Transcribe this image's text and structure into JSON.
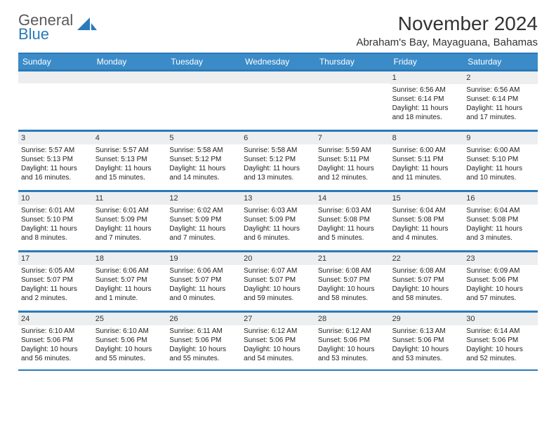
{
  "brand": {
    "word1": "General",
    "word2": "Blue"
  },
  "title": "November 2024",
  "location": "Abraham's Bay, Mayaguana, Bahamas",
  "colors": {
    "header_bg": "#3b8bc8",
    "rule": "#2a7ab9",
    "num_bg": "#eceef0",
    "text": "#222222",
    "logo_gray": "#5a5a5a"
  },
  "day_names": [
    "Sunday",
    "Monday",
    "Tuesday",
    "Wednesday",
    "Thursday",
    "Friday",
    "Saturday"
  ],
  "weeks": [
    [
      {
        "n": "",
        "sunrise": "",
        "sunset": "",
        "daylight": ""
      },
      {
        "n": "",
        "sunrise": "",
        "sunset": "",
        "daylight": ""
      },
      {
        "n": "",
        "sunrise": "",
        "sunset": "",
        "daylight": ""
      },
      {
        "n": "",
        "sunrise": "",
        "sunset": "",
        "daylight": ""
      },
      {
        "n": "",
        "sunrise": "",
        "sunset": "",
        "daylight": ""
      },
      {
        "n": "1",
        "sunrise": "Sunrise: 6:56 AM",
        "sunset": "Sunset: 6:14 PM",
        "daylight": "Daylight: 11 hours and 18 minutes."
      },
      {
        "n": "2",
        "sunrise": "Sunrise: 6:56 AM",
        "sunset": "Sunset: 6:14 PM",
        "daylight": "Daylight: 11 hours and 17 minutes."
      }
    ],
    [
      {
        "n": "3",
        "sunrise": "Sunrise: 5:57 AM",
        "sunset": "Sunset: 5:13 PM",
        "daylight": "Daylight: 11 hours and 16 minutes."
      },
      {
        "n": "4",
        "sunrise": "Sunrise: 5:57 AM",
        "sunset": "Sunset: 5:13 PM",
        "daylight": "Daylight: 11 hours and 15 minutes."
      },
      {
        "n": "5",
        "sunrise": "Sunrise: 5:58 AM",
        "sunset": "Sunset: 5:12 PM",
        "daylight": "Daylight: 11 hours and 14 minutes."
      },
      {
        "n": "6",
        "sunrise": "Sunrise: 5:58 AM",
        "sunset": "Sunset: 5:12 PM",
        "daylight": "Daylight: 11 hours and 13 minutes."
      },
      {
        "n": "7",
        "sunrise": "Sunrise: 5:59 AM",
        "sunset": "Sunset: 5:11 PM",
        "daylight": "Daylight: 11 hours and 12 minutes."
      },
      {
        "n": "8",
        "sunrise": "Sunrise: 6:00 AM",
        "sunset": "Sunset: 5:11 PM",
        "daylight": "Daylight: 11 hours and 11 minutes."
      },
      {
        "n": "9",
        "sunrise": "Sunrise: 6:00 AM",
        "sunset": "Sunset: 5:10 PM",
        "daylight": "Daylight: 11 hours and 10 minutes."
      }
    ],
    [
      {
        "n": "10",
        "sunrise": "Sunrise: 6:01 AM",
        "sunset": "Sunset: 5:10 PM",
        "daylight": "Daylight: 11 hours and 8 minutes."
      },
      {
        "n": "11",
        "sunrise": "Sunrise: 6:01 AM",
        "sunset": "Sunset: 5:09 PM",
        "daylight": "Daylight: 11 hours and 7 minutes."
      },
      {
        "n": "12",
        "sunrise": "Sunrise: 6:02 AM",
        "sunset": "Sunset: 5:09 PM",
        "daylight": "Daylight: 11 hours and 7 minutes."
      },
      {
        "n": "13",
        "sunrise": "Sunrise: 6:03 AM",
        "sunset": "Sunset: 5:09 PM",
        "daylight": "Daylight: 11 hours and 6 minutes."
      },
      {
        "n": "14",
        "sunrise": "Sunrise: 6:03 AM",
        "sunset": "Sunset: 5:08 PM",
        "daylight": "Daylight: 11 hours and 5 minutes."
      },
      {
        "n": "15",
        "sunrise": "Sunrise: 6:04 AM",
        "sunset": "Sunset: 5:08 PM",
        "daylight": "Daylight: 11 hours and 4 minutes."
      },
      {
        "n": "16",
        "sunrise": "Sunrise: 6:04 AM",
        "sunset": "Sunset: 5:08 PM",
        "daylight": "Daylight: 11 hours and 3 minutes."
      }
    ],
    [
      {
        "n": "17",
        "sunrise": "Sunrise: 6:05 AM",
        "sunset": "Sunset: 5:07 PM",
        "daylight": "Daylight: 11 hours and 2 minutes."
      },
      {
        "n": "18",
        "sunrise": "Sunrise: 6:06 AM",
        "sunset": "Sunset: 5:07 PM",
        "daylight": "Daylight: 11 hours and 1 minute."
      },
      {
        "n": "19",
        "sunrise": "Sunrise: 6:06 AM",
        "sunset": "Sunset: 5:07 PM",
        "daylight": "Daylight: 11 hours and 0 minutes."
      },
      {
        "n": "20",
        "sunrise": "Sunrise: 6:07 AM",
        "sunset": "Sunset: 5:07 PM",
        "daylight": "Daylight: 10 hours and 59 minutes."
      },
      {
        "n": "21",
        "sunrise": "Sunrise: 6:08 AM",
        "sunset": "Sunset: 5:07 PM",
        "daylight": "Daylight: 10 hours and 58 minutes."
      },
      {
        "n": "22",
        "sunrise": "Sunrise: 6:08 AM",
        "sunset": "Sunset: 5:07 PM",
        "daylight": "Daylight: 10 hours and 58 minutes."
      },
      {
        "n": "23",
        "sunrise": "Sunrise: 6:09 AM",
        "sunset": "Sunset: 5:06 PM",
        "daylight": "Daylight: 10 hours and 57 minutes."
      }
    ],
    [
      {
        "n": "24",
        "sunrise": "Sunrise: 6:10 AM",
        "sunset": "Sunset: 5:06 PM",
        "daylight": "Daylight: 10 hours and 56 minutes."
      },
      {
        "n": "25",
        "sunrise": "Sunrise: 6:10 AM",
        "sunset": "Sunset: 5:06 PM",
        "daylight": "Daylight: 10 hours and 55 minutes."
      },
      {
        "n": "26",
        "sunrise": "Sunrise: 6:11 AM",
        "sunset": "Sunset: 5:06 PM",
        "daylight": "Daylight: 10 hours and 55 minutes."
      },
      {
        "n": "27",
        "sunrise": "Sunrise: 6:12 AM",
        "sunset": "Sunset: 5:06 PM",
        "daylight": "Daylight: 10 hours and 54 minutes."
      },
      {
        "n": "28",
        "sunrise": "Sunrise: 6:12 AM",
        "sunset": "Sunset: 5:06 PM",
        "daylight": "Daylight: 10 hours and 53 minutes."
      },
      {
        "n": "29",
        "sunrise": "Sunrise: 6:13 AM",
        "sunset": "Sunset: 5:06 PM",
        "daylight": "Daylight: 10 hours and 53 minutes."
      },
      {
        "n": "30",
        "sunrise": "Sunrise: 6:14 AM",
        "sunset": "Sunset: 5:06 PM",
        "daylight": "Daylight: 10 hours and 52 minutes."
      }
    ]
  ]
}
